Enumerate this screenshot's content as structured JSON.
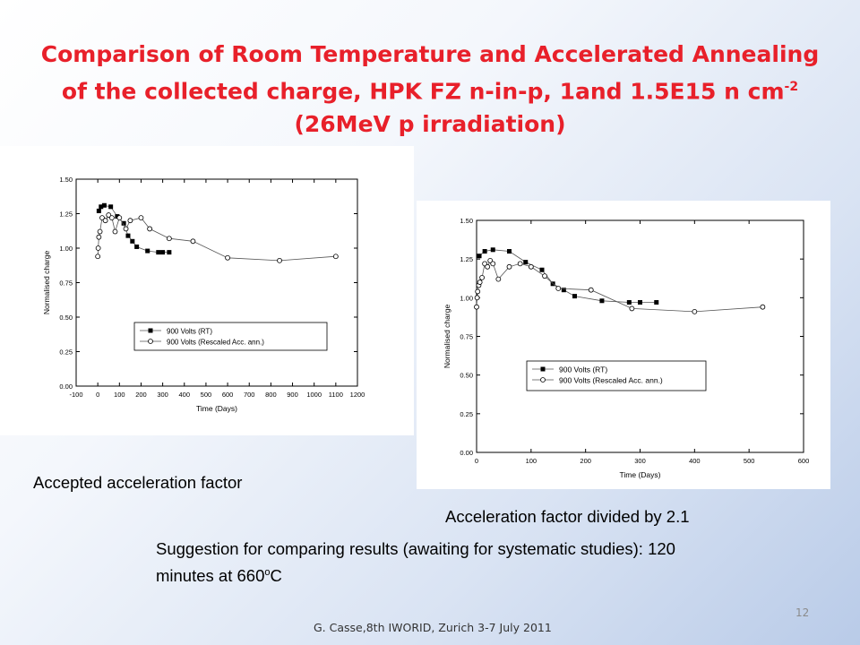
{
  "slide": {
    "title_main": "Comparison of Room Temperature and Accelerated Annealing of the collected charge, HPK FZ n-in-p, 1and 1.5E15 n cm",
    "title_sup": "-2",
    "title_tail": " (26MeV p irradiation)",
    "caption_left": "Accepted acceleration factor",
    "caption_right": "Acceleration factor divided by 2.1",
    "suggestion_pre": "Suggestion for comparing results (awaiting for systematic studies): 120 minutes at 660",
    "suggestion_sup": "o",
    "suggestion_post": "C",
    "footer": "G. Casse,8th IWORID, Zurich 3-7 July 2011",
    "page_number": "12"
  },
  "chart_data": [
    {
      "type": "line",
      "xlabel": "Time (Days)",
      "ylabel": "Normalised charge",
      "xlim": [
        -100,
        1200
      ],
      "ylim": [
        0,
        1.5
      ],
      "xticks": [
        "-100",
        "0",
        "100",
        "200",
        "300",
        "400",
        "500",
        "600",
        "700",
        "800",
        "900",
        "1000",
        "1100",
        "1200"
      ],
      "yticks": [
        "0.00",
        "0.25",
        "0.50",
        "0.75",
        "1.00",
        "1.25",
        "1.50"
      ],
      "legend_position": "bottom-center",
      "series": [
        {
          "name": "900 Volts (RT)",
          "marker": "filled-square",
          "x": [
            5,
            15,
            30,
            60,
            90,
            120,
            140,
            160,
            180,
            230,
            280,
            300,
            330
          ],
          "y": [
            1.27,
            1.3,
            1.31,
            1.3,
            1.23,
            1.18,
            1.09,
            1.05,
            1.01,
            0.98,
            0.97,
            0.97,
            0.97
          ]
        },
        {
          "name": "900 Volts (Rescaled Acc. ann.)",
          "marker": "open-circle",
          "x": [
            0,
            2,
            5,
            10,
            20,
            35,
            50,
            65,
            80,
            100,
            130,
            150,
            200,
            240,
            330,
            440,
            600,
            840,
            1100
          ],
          "y": [
            0.94,
            1.0,
            1.08,
            1.12,
            1.22,
            1.2,
            1.24,
            1.22,
            1.12,
            1.22,
            1.14,
            1.2,
            1.22,
            1.14,
            1.07,
            1.05,
            0.93,
            0.91,
            0.94
          ]
        }
      ]
    },
    {
      "type": "line",
      "xlabel": "Time (Days)",
      "ylabel": "Normalised charge",
      "xlim": [
        0,
        600
      ],
      "ylim": [
        0,
        1.5
      ],
      "xticks": [
        "0",
        "100",
        "200",
        "300",
        "400",
        "500",
        "600"
      ],
      "yticks": [
        "0.00",
        "0.25",
        "0.50",
        "0.75",
        "1.00",
        "1.25",
        "1.50"
      ],
      "legend_position": "bottom-center",
      "series": [
        {
          "name": "900 Volts (RT)",
          "marker": "filled-square",
          "x": [
            5,
            15,
            30,
            60,
            90,
            120,
            140,
            160,
            180,
            230,
            280,
            300,
            330
          ],
          "y": [
            1.27,
            1.3,
            1.31,
            1.3,
            1.23,
            1.18,
            1.09,
            1.05,
            1.01,
            0.98,
            0.97,
            0.97,
            0.97
          ]
        },
        {
          "name": "900 Volts (Rescaled Acc. ann.)",
          "marker": "open-circle",
          "x": [
            0,
            1,
            2,
            4,
            6,
            10,
            15,
            20,
            25,
            30,
            40,
            60,
            80,
            100,
            125,
            150,
            210,
            285,
            400,
            525
          ],
          "y": [
            0.94,
            1.0,
            1.04,
            1.08,
            1.1,
            1.13,
            1.22,
            1.2,
            1.24,
            1.22,
            1.12,
            1.2,
            1.22,
            1.2,
            1.14,
            1.06,
            1.05,
            0.93,
            0.91,
            0.94
          ]
        }
      ]
    }
  ]
}
